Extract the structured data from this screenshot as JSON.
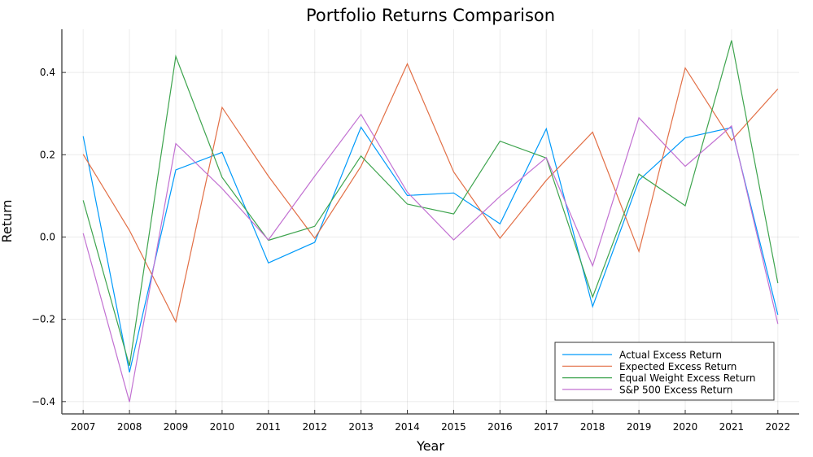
{
  "chart_data": {
    "type": "line",
    "title": "Portfolio Returns Comparison",
    "xlabel": "Year",
    "ylabel": "Return",
    "x": [
      2007,
      2008,
      2009,
      2010,
      2011,
      2012,
      2013,
      2014,
      2015,
      2016,
      2017,
      2018,
      2019,
      2020,
      2021,
      2022
    ],
    "xticks": [
      "2007",
      "2008",
      "2009",
      "2010",
      "2011",
      "2012",
      "2013",
      "2014",
      "2015",
      "2016",
      "2017",
      "2018",
      "2019",
      "2020",
      "2021",
      "2022"
    ],
    "yticks": [
      -0.4,
      -0.2,
      0.0,
      0.2,
      0.4
    ],
    "ytick_labels": [
      "−0.4",
      "−0.2",
      "0.0",
      "0.2",
      "0.4"
    ],
    "xlim": [
      2006.54,
      2022.46
    ],
    "ylim": [
      -0.43,
      0.505
    ],
    "grid": true,
    "legend_position": "bottom-right",
    "series": [
      {
        "name": "Actual Excess Return",
        "color": "#009AFA",
        "values": [
          0.245,
          -0.329,
          0.163,
          0.206,
          -0.063,
          -0.013,
          0.267,
          0.101,
          0.107,
          0.032,
          0.263,
          -0.169,
          0.138,
          0.241,
          0.266,
          -0.189
        ]
      },
      {
        "name": "Expected Excess Return",
        "color": "#E26F46",
        "values": [
          0.201,
          0.016,
          -0.206,
          0.315,
          0.148,
          -0.003,
          0.172,
          0.421,
          0.158,
          -0.003,
          0.138,
          0.255,
          -0.035,
          0.411,
          0.235,
          0.36
        ]
      },
      {
        "name": "Equal Weight Excess Return",
        "color": "#3EA44E",
        "values": [
          0.089,
          -0.313,
          0.439,
          0.145,
          -0.008,
          0.026,
          0.197,
          0.08,
          0.056,
          0.233,
          0.192,
          -0.146,
          0.153,
          0.076,
          0.478,
          -0.112
        ]
      },
      {
        "name": "S&P 500 Excess Return",
        "color": "#C271D2",
        "values": [
          0.009,
          -0.401,
          0.227,
          0.118,
          -0.007,
          0.148,
          0.298,
          0.109,
          -0.007,
          0.099,
          0.193,
          -0.07,
          0.29,
          0.172,
          0.27,
          -0.211
        ]
      }
    ]
  }
}
